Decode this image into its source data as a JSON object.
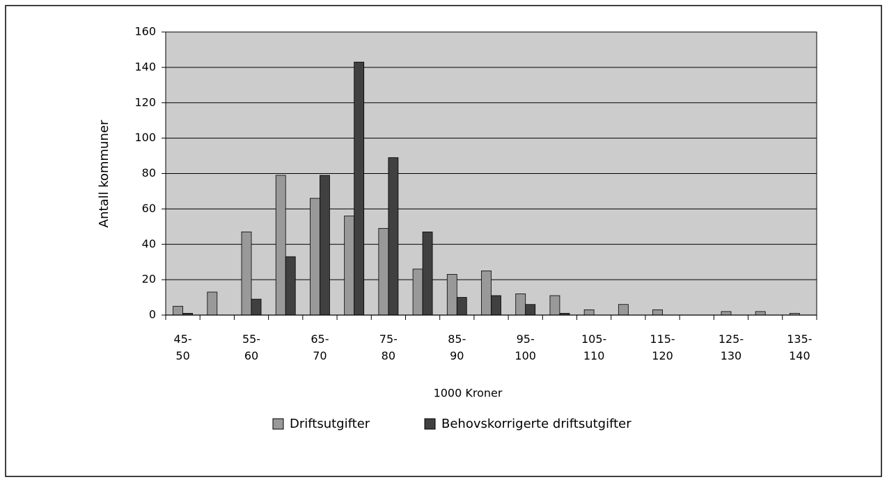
{
  "chart_data": {
    "type": "bar",
    "categories": [
      "45-50",
      null,
      "55-60",
      null,
      "65-70",
      null,
      "75-80",
      null,
      "85-90",
      null,
      "95-100",
      null,
      "105-110",
      null,
      "115-120",
      null,
      "125-130",
      null,
      "135-140"
    ],
    "series": [
      {
        "name": "Driftsutgifter",
        "color": "#999999",
        "values": [
          5,
          13,
          47,
          79,
          66,
          56,
          49,
          26,
          23,
          25,
          12,
          11,
          3,
          6,
          3,
          0,
          2,
          2,
          1
        ]
      },
      {
        "name": "Behovskorrigerte driftsutgifter",
        "color": "#404040",
        "values": [
          1,
          0,
          9,
          33,
          79,
          143,
          89,
          47,
          10,
          11,
          6,
          1,
          0,
          0,
          0,
          0,
          0,
          0,
          0
        ]
      }
    ],
    "xlabel": "1000 Kroner",
    "ylabel": "Antall kommuner",
    "ylim": [
      0,
      160
    ],
    "yticks": [
      0,
      20,
      40,
      60,
      80,
      100,
      120,
      140,
      160
    ],
    "grid": true,
    "background": "#cccccc",
    "legend": "bottom"
  }
}
